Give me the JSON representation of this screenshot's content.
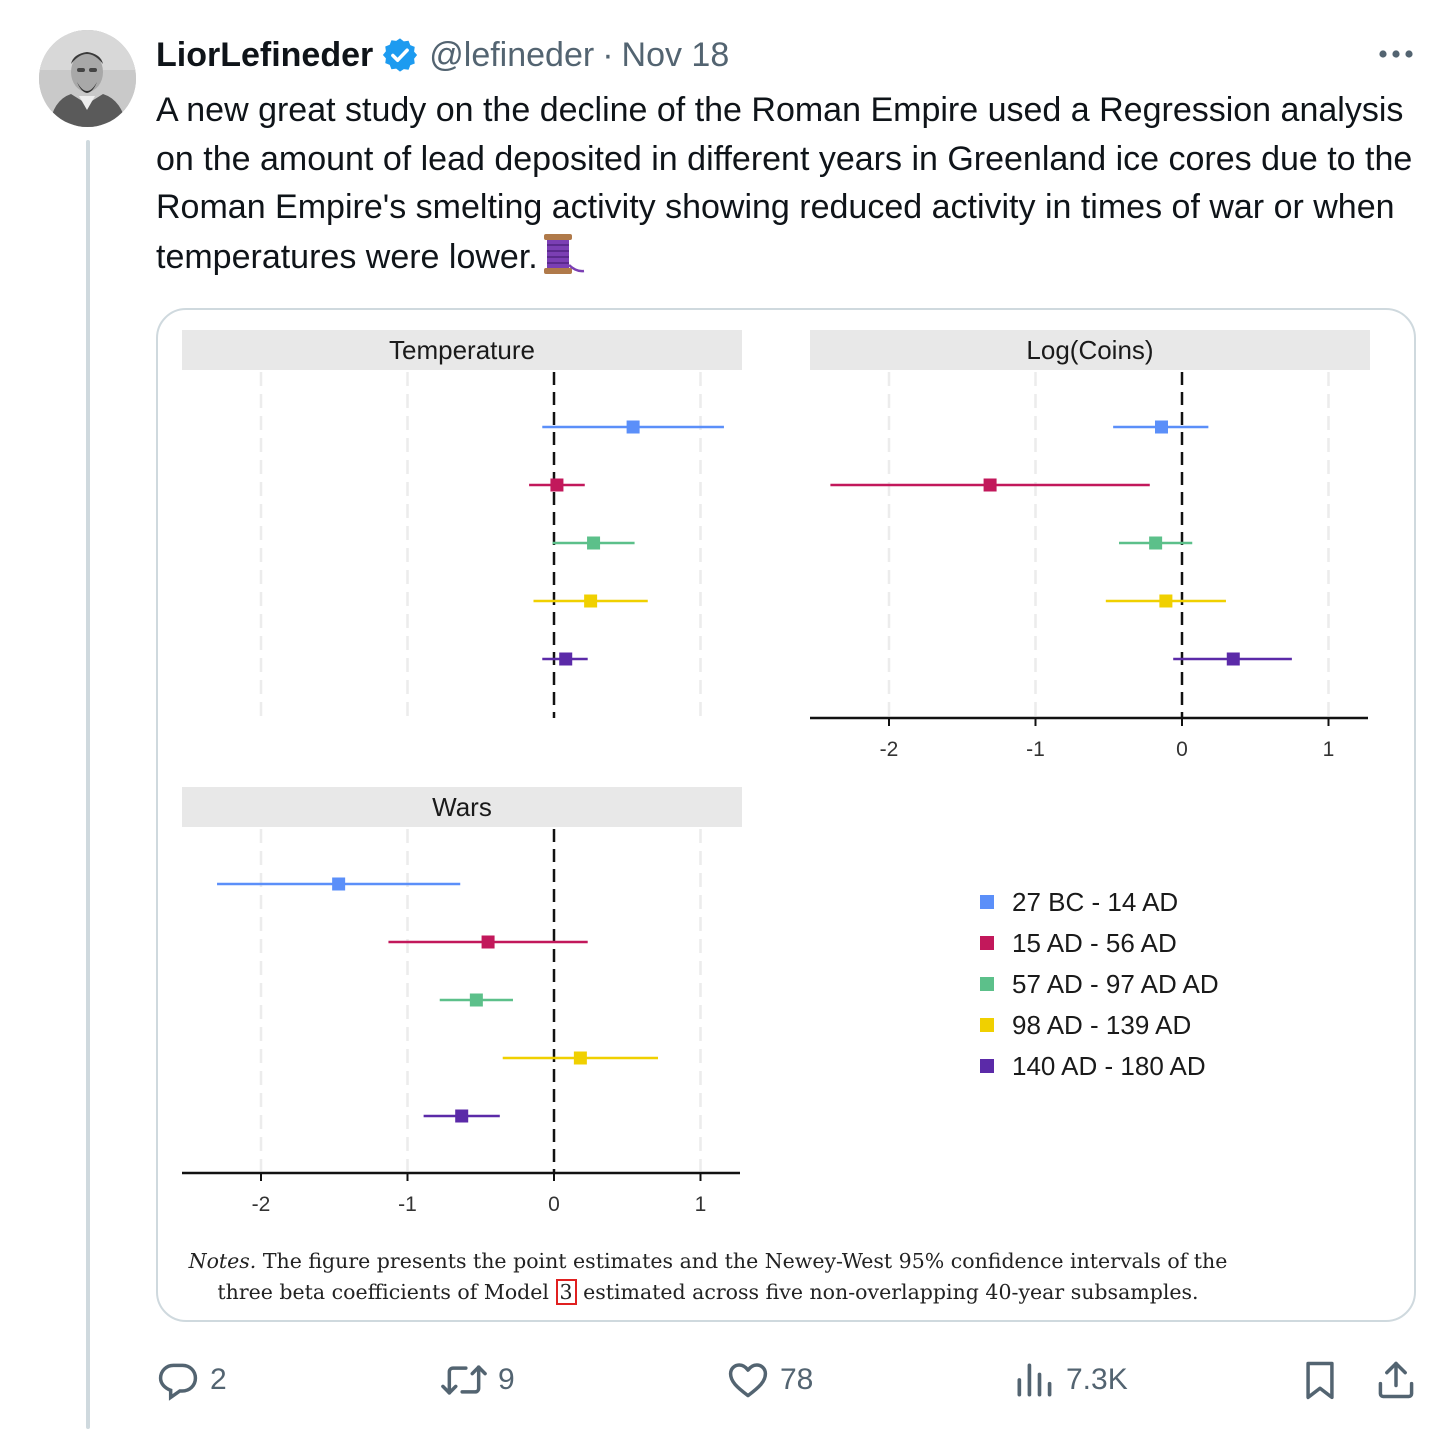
{
  "tweet": {
    "author_name": "LiorLefineder",
    "handle": "@lefineder",
    "separator": "·",
    "date": "Nov 18",
    "text": "A new great study on the decline of the Roman Empire used a Regression analysis on the amount of lead deposited in different years in Greenland ice cores due to the Roman Empire's smelting activity showing reduced activity in times of war or when temperatures were lower.",
    "emoji_icon": "thread-spool-icon"
  },
  "actions": {
    "replies": "2",
    "reposts": "9",
    "likes": "78",
    "views": "7.3K"
  },
  "figure": {
    "notes_italic": "Notes.",
    "notes_line1": " The figure presents the point estimates and the Newey-West 95% confidence intervals of the",
    "notes_line2_a": "three beta coefficients of Model ",
    "notes_ref": "3",
    "notes_line2_b": " estimated across five non-overlapping 40-year subsamples."
  },
  "chart_data": [
    {
      "type": "scatter",
      "title": "Temperature",
      "errorbars": true,
      "x_ticks": [
        -2,
        -1,
        0,
        1
      ],
      "xlim": [
        -2.5,
        1.3
      ],
      "reference_line": 0,
      "x_axis_shown": false,
      "series": [
        {
          "name": "27 BC - 14 AD",
          "estimate": 0.54,
          "lo": -0.08,
          "hi": 1.16
        },
        {
          "name": "15 AD - 56 AD",
          "estimate": 0.02,
          "lo": -0.17,
          "hi": 0.21
        },
        {
          "name": "57 AD - 97 AD AD",
          "estimate": 0.27,
          "lo": -0.01,
          "hi": 0.55
        },
        {
          "name": "98 AD - 139 AD",
          "estimate": 0.25,
          "lo": -0.14,
          "hi": 0.64
        },
        {
          "name": "140 AD - 180 AD",
          "estimate": 0.08,
          "lo": -0.08,
          "hi": 0.23
        }
      ]
    },
    {
      "type": "scatter",
      "title": "Log(Coins)",
      "errorbars": true,
      "x_ticks": [
        -2,
        -1,
        0,
        1
      ],
      "xlim": [
        -2.5,
        1.3
      ],
      "reference_line": 0,
      "x_axis_shown": true,
      "series": [
        {
          "name": "27 BC - 14 AD",
          "estimate": -0.14,
          "lo": -0.47,
          "hi": 0.18
        },
        {
          "name": "15 AD - 56 AD",
          "estimate": -1.31,
          "lo": -2.4,
          "hi": -0.22
        },
        {
          "name": "57 AD - 97 AD AD",
          "estimate": -0.18,
          "lo": -0.43,
          "hi": 0.07
        },
        {
          "name": "98 AD - 139 AD",
          "estimate": -0.11,
          "lo": -0.52,
          "hi": 0.3
        },
        {
          "name": "140 AD - 180 AD",
          "estimate": 0.35,
          "lo": -0.06,
          "hi": 0.75
        }
      ]
    },
    {
      "type": "scatter",
      "title": "Wars",
      "errorbars": true,
      "x_ticks": [
        -2,
        -1,
        0,
        1
      ],
      "xlim": [
        -2.5,
        1.3
      ],
      "reference_line": 0,
      "x_axis_shown": true,
      "series": [
        {
          "name": "27 BC - 14 AD",
          "estimate": -1.47,
          "lo": -2.3,
          "hi": -0.64
        },
        {
          "name": "15 AD - 56 AD",
          "estimate": -0.45,
          "lo": -1.13,
          "hi": 0.23
        },
        {
          "name": "57 AD - 97 AD AD",
          "estimate": -0.53,
          "lo": -0.78,
          "hi": -0.28
        },
        {
          "name": "98 AD - 139 AD",
          "estimate": 0.18,
          "lo": -0.35,
          "hi": 0.71
        },
        {
          "name": "140 AD - 180 AD",
          "estimate": -0.63,
          "lo": -0.89,
          "hi": -0.37
        }
      ]
    }
  ],
  "legend": {
    "items": [
      {
        "label": "27 BC - 14 AD",
        "color": "#5b8ff9"
      },
      {
        "label": "15 AD - 56 AD",
        "color": "#c2185b"
      },
      {
        "label": "57 AD - 97 AD AD",
        "color": "#5cc08a"
      },
      {
        "label": "98 AD - 139 AD",
        "color": "#f0d000"
      },
      {
        "label": "140 AD - 180 AD",
        "color": "#5b2aa8"
      }
    ]
  },
  "colors": {
    "text": "#0f1419",
    "secondary": "#536471",
    "verified": "#1d9bf0",
    "strip": "#e8e8e8"
  }
}
